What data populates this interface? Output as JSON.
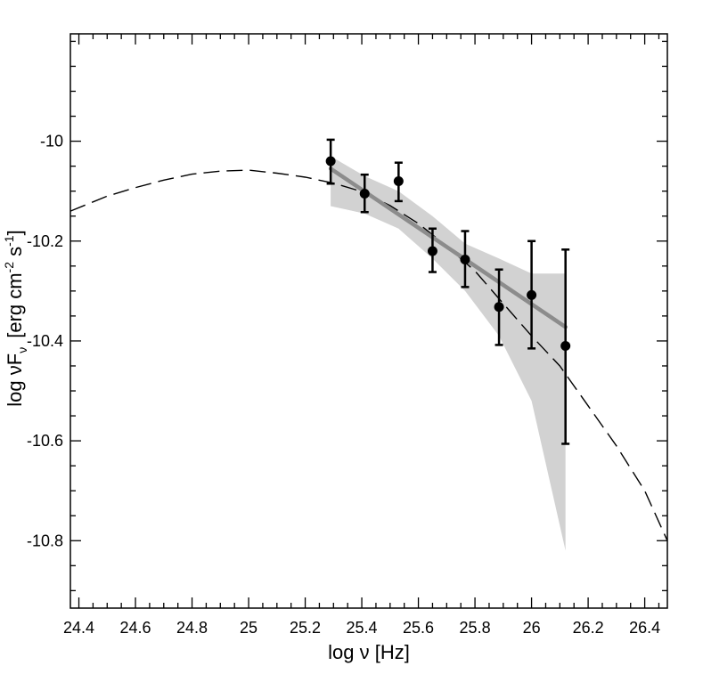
{
  "chart_data": {
    "type": "scatter",
    "xlabel": "log ν [Hz]",
    "ylabel": {
      "prefix": "log ν",
      "symbol": "F",
      "sub": "ν",
      "unit_open": "[erg cm",
      "unit_exp1": "-2",
      "unit_mid": " s",
      "unit_exp2": "-1",
      "unit_close": "]"
    },
    "xlim": [
      24.37,
      26.48
    ],
    "ylim": [
      -10.935,
      -9.785
    ],
    "x_ticks": [
      24.4,
      24.6,
      24.8,
      25.0,
      25.2,
      25.4,
      25.6,
      25.8,
      26.0,
      26.2,
      26.4
    ],
    "x_tick_labels": [
      "24.4",
      "24.6",
      "24.8",
      "25",
      "25.2",
      "25.4",
      "25.6",
      "25.8",
      "26",
      "26.2",
      "26.4"
    ],
    "y_ticks": [
      -10.8,
      -10.6,
      -10.4,
      -10.2,
      -10.0
    ],
    "y_tick_labels": [
      "-10.8",
      "-10.6",
      "-10.4",
      "-10.2",
      "-10"
    ],
    "grid": false,
    "points": [
      {
        "x": 25.29,
        "y": -10.04,
        "lo": -10.085,
        "hi": -9.997
      },
      {
        "x": 25.41,
        "y": -10.105,
        "lo": -10.142,
        "hi": -10.067
      },
      {
        "x": 25.53,
        "y": -10.08,
        "lo": -10.12,
        "hi": -10.043
      },
      {
        "x": 25.65,
        "y": -10.22,
        "lo": -10.262,
        "hi": -10.175
      },
      {
        "x": 25.765,
        "y": -10.237,
        "lo": -10.292,
        "hi": -10.18
      },
      {
        "x": 25.885,
        "y": -10.332,
        "lo": -10.408,
        "hi": -10.257
      },
      {
        "x": 26.0,
        "y": -10.308,
        "lo": -10.415,
        "hi": -10.2
      },
      {
        "x": 26.12,
        "y": -10.41,
        "lo": -10.606,
        "hi": -10.217
      }
    ],
    "fit_line": {
      "x": [
        25.29,
        26.12
      ],
      "y": [
        -10.055,
        -10.372
      ]
    },
    "band": {
      "upper": [
        [
          25.29,
          -10.03
        ],
        [
          25.41,
          -10.07
        ],
        [
          25.53,
          -10.1
        ],
        [
          25.65,
          -10.15
        ],
        [
          25.765,
          -10.205
        ],
        [
          25.885,
          -10.235
        ],
        [
          26.0,
          -10.265
        ],
        [
          26.12,
          -10.265
        ]
      ],
      "lower": [
        [
          25.29,
          -10.13
        ],
        [
          25.41,
          -10.145
        ],
        [
          25.53,
          -10.175
        ],
        [
          25.65,
          -10.235
        ],
        [
          25.765,
          -10.3
        ],
        [
          25.885,
          -10.39
        ],
        [
          26.0,
          -10.52
        ],
        [
          26.12,
          -10.82
        ]
      ]
    },
    "model_curve": {
      "x": [
        24.37,
        24.5,
        24.6,
        24.7,
        24.8,
        24.9,
        25.0,
        25.1,
        25.2,
        25.3,
        25.4,
        25.5,
        25.6,
        25.7,
        25.8,
        25.9,
        26.0,
        26.1,
        26.2,
        26.3,
        26.4,
        26.48
      ],
      "y": [
        -10.14,
        -10.11,
        -10.093,
        -10.078,
        -10.066,
        -10.06,
        -10.058,
        -10.064,
        -10.072,
        -10.084,
        -10.101,
        -10.129,
        -10.165,
        -10.21,
        -10.26,
        -10.325,
        -10.39,
        -10.45,
        -10.53,
        -10.61,
        -10.7,
        -10.8
      ]
    }
  }
}
